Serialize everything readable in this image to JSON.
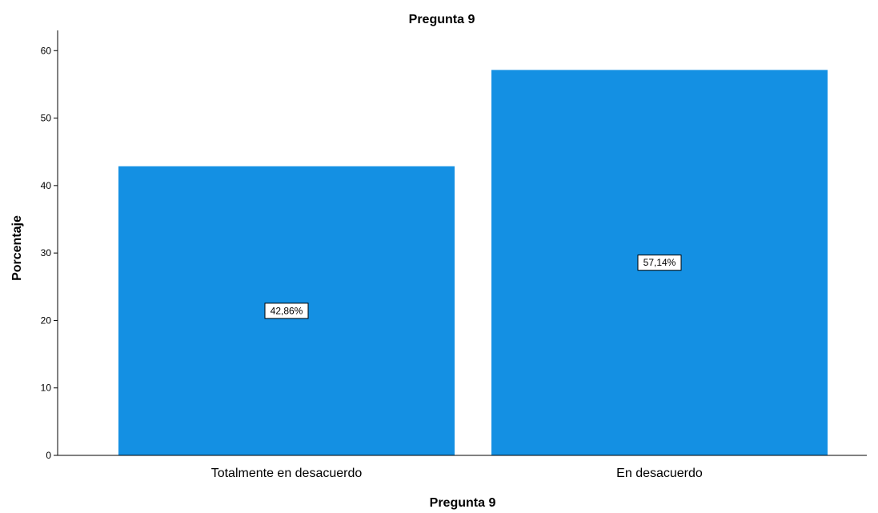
{
  "chart_data": {
    "type": "bar",
    "title": "Pregunta 9",
    "xlabel": "Pregunta 9",
    "ylabel": "Porcentaje",
    "categories": [
      "Totalmente en desacuerdo",
      "En desacuerdo"
    ],
    "values": [
      42.86,
      57.14
    ],
    "data_labels": [
      "42,86%",
      "57,14%"
    ],
    "ylim": [
      0,
      63
    ],
    "yticks": [
      0,
      10,
      20,
      30,
      40,
      50,
      60
    ],
    "ytick_labels": [
      "0",
      "10",
      "20",
      "30",
      "40",
      "50",
      "60"
    ],
    "grid": false,
    "legend": "none",
    "bar_color": "#1490e3"
  }
}
